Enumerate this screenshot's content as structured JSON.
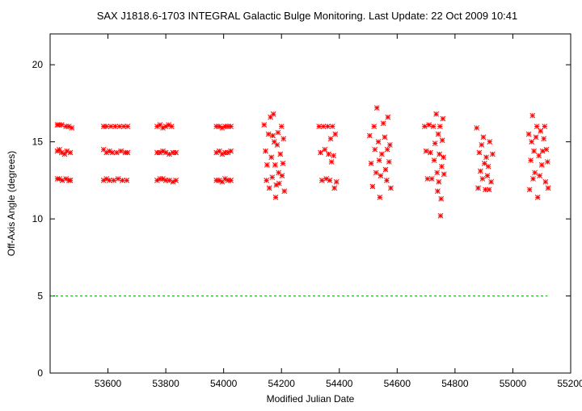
{
  "colors": {
    "points": "#ff0000",
    "reference_line": "#00c000",
    "axes": "#000000",
    "background": "#ffffff"
  },
  "chart_data": {
    "type": "scatter",
    "title": "SAX J1818.6-1703   INTEGRAL Galactic Bulge Monitoring.  Last Update: 22 Oct 2009 10:41",
    "xlabel": "Modified Julian Date",
    "ylabel": "Off-Axis Angle (degrees)",
    "xlim": [
      53400,
      55200
    ],
    "ylim": [
      0,
      22
    ],
    "x_ticks": [
      "53600",
      "53800",
      "54000",
      "54200",
      "54400",
      "54600",
      "54800",
      "55000",
      "55200"
    ],
    "y_ticks": [
      "0",
      "5",
      "10",
      "15",
      "20"
    ],
    "grid": false,
    "marker": "asterisk",
    "reference_line": {
      "y": 5,
      "style": "dashed"
    },
    "series": [
      {
        "points": [
          [
            53425,
            16.1
          ],
          [
            53430,
            16.1
          ],
          [
            53440,
            16.1
          ],
          [
            53455,
            16.0
          ],
          [
            53465,
            16.0
          ],
          [
            53475,
            15.9
          ],
          [
            53425,
            14.4
          ],
          [
            53432,
            14.5
          ],
          [
            53440,
            14.3
          ],
          [
            53450,
            14.2
          ],
          [
            53458,
            14.4
          ],
          [
            53470,
            14.3
          ],
          [
            53425,
            12.6
          ],
          [
            53432,
            12.6
          ],
          [
            53442,
            12.5
          ],
          [
            53455,
            12.6
          ],
          [
            53465,
            12.5
          ],
          [
            53470,
            12.5
          ],
          [
            53585,
            16.0
          ],
          [
            53595,
            16.0
          ],
          [
            53610,
            16.0
          ],
          [
            53625,
            16.0
          ],
          [
            53640,
            16.0
          ],
          [
            53655,
            16.0
          ],
          [
            53668,
            16.0
          ],
          [
            53585,
            14.5
          ],
          [
            53595,
            14.3
          ],
          [
            53605,
            14.4
          ],
          [
            53615,
            14.3
          ],
          [
            53630,
            14.3
          ],
          [
            53645,
            14.4
          ],
          [
            53660,
            14.3
          ],
          [
            53668,
            14.3
          ],
          [
            53585,
            12.5
          ],
          [
            53595,
            12.6
          ],
          [
            53605,
            12.5
          ],
          [
            53620,
            12.5
          ],
          [
            53635,
            12.6
          ],
          [
            53650,
            12.5
          ],
          [
            53665,
            12.5
          ],
          [
            53770,
            16.0
          ],
          [
            53780,
            16.1
          ],
          [
            53790,
            15.9
          ],
          [
            53800,
            16.0
          ],
          [
            53810,
            16.1
          ],
          [
            53820,
            16.0
          ],
          [
            53770,
            14.3
          ],
          [
            53780,
            14.3
          ],
          [
            53790,
            14.4
          ],
          [
            53800,
            14.3
          ],
          [
            53812,
            14.2
          ],
          [
            53825,
            14.3
          ],
          [
            53835,
            14.3
          ],
          [
            53770,
            12.5
          ],
          [
            53780,
            12.6
          ],
          [
            53790,
            12.6
          ],
          [
            53800,
            12.5
          ],
          [
            53812,
            12.5
          ],
          [
            53825,
            12.4
          ],
          [
            53835,
            12.5
          ],
          [
            53975,
            16.0
          ],
          [
            53985,
            16.0
          ],
          [
            53995,
            15.9
          ],
          [
            54005,
            16.0
          ],
          [
            54015,
            16.0
          ],
          [
            54025,
            16.0
          ],
          [
            53975,
            14.3
          ],
          [
            53985,
            14.4
          ],
          [
            53995,
            14.2
          ],
          [
            54005,
            14.3
          ],
          [
            54015,
            14.3
          ],
          [
            54025,
            14.4
          ],
          [
            53975,
            12.5
          ],
          [
            53985,
            12.5
          ],
          [
            53995,
            12.4
          ],
          [
            54005,
            12.6
          ],
          [
            54015,
            12.5
          ],
          [
            54025,
            12.5
          ],
          [
            54140,
            16.1
          ],
          [
            54145,
            14.4
          ],
          [
            54150,
            13.5
          ],
          [
            54148,
            12.5
          ],
          [
            54155,
            15.5
          ],
          [
            54158,
            12.0
          ],
          [
            54162,
            16.6
          ],
          [
            54165,
            14.0
          ],
          [
            54168,
            12.7
          ],
          [
            54170,
            15.4
          ],
          [
            54172,
            16.8
          ],
          [
            54175,
            15.0
          ],
          [
            54178,
            13.5
          ],
          [
            54180,
            11.4
          ],
          [
            54182,
            12.2
          ],
          [
            54185,
            14.8
          ],
          [
            54188,
            15.6
          ],
          [
            54190,
            13.0
          ],
          [
            54192,
            12.3
          ],
          [
            54196,
            14.2
          ],
          [
            54200,
            16.0
          ],
          [
            54202,
            12.8
          ],
          [
            54205,
            13.6
          ],
          [
            54207,
            15.2
          ],
          [
            54210,
            11.8
          ],
          [
            54330,
            16.0
          ],
          [
            54335,
            14.3
          ],
          [
            54340,
            12.5
          ],
          [
            54345,
            16.0
          ],
          [
            54350,
            14.5
          ],
          [
            54355,
            12.6
          ],
          [
            54360,
            16.0
          ],
          [
            54363,
            14.2
          ],
          [
            54367,
            12.5
          ],
          [
            54370,
            15.2
          ],
          [
            54373,
            13.7
          ],
          [
            54376,
            16.0
          ],
          [
            54380,
            14.1
          ],
          [
            54383,
            12.0
          ],
          [
            54386,
            15.5
          ],
          [
            54390,
            12.4
          ],
          [
            54505,
            15.4
          ],
          [
            54510,
            13.6
          ],
          [
            54515,
            12.1
          ],
          [
            54520,
            16.0
          ],
          [
            54523,
            14.5
          ],
          [
            54527,
            13.0
          ],
          [
            54530,
            17.2
          ],
          [
            54535,
            15.0
          ],
          [
            54538,
            13.8
          ],
          [
            54540,
            11.4
          ],
          [
            54543,
            12.8
          ],
          [
            54547,
            14.2
          ],
          [
            54552,
            16.2
          ],
          [
            54557,
            15.3
          ],
          [
            54560,
            13.2
          ],
          [
            54564,
            12.5
          ],
          [
            54566,
            14.5
          ],
          [
            54568,
            16.6
          ],
          [
            54572,
            13.7
          ],
          [
            54575,
            14.8
          ],
          [
            54578,
            12.0
          ],
          [
            54695,
            16.0
          ],
          [
            54700,
            14.4
          ],
          [
            54705,
            12.6
          ],
          [
            54710,
            16.1
          ],
          [
            54715,
            14.3
          ],
          [
            54720,
            12.6
          ],
          [
            54725,
            16.0
          ],
          [
            54728,
            13.8
          ],
          [
            54731,
            14.9
          ],
          [
            54735,
            16.8
          ],
          [
            54738,
            13.0
          ],
          [
            54740,
            11.8
          ],
          [
            54742,
            15.5
          ],
          [
            54744,
            12.4
          ],
          [
            54746,
            14.2
          ],
          [
            54748,
            16.0
          ],
          [
            54750,
            10.2
          ],
          [
            54752,
            11.3
          ],
          [
            54754,
            13.4
          ],
          [
            54756,
            15.1
          ],
          [
            54758,
            16.5
          ],
          [
            54760,
            14.0
          ],
          [
            54762,
            12.9
          ],
          [
            54875,
            15.9
          ],
          [
            54880,
            12.0
          ],
          [
            54884,
            14.3
          ],
          [
            54888,
            13.1
          ],
          [
            54892,
            14.8
          ],
          [
            54895,
            12.6
          ],
          [
            54898,
            15.3
          ],
          [
            54902,
            13.6
          ],
          [
            54905,
            11.9
          ],
          [
            54908,
            14.0
          ],
          [
            54912,
            12.8
          ],
          [
            54915,
            13.4
          ],
          [
            54918,
            11.9
          ],
          [
            54920,
            15.0
          ],
          [
            54925,
            12.4
          ],
          [
            54930,
            14.2
          ],
          [
            55055,
            15.5
          ],
          [
            55058,
            11.9
          ],
          [
            55062,
            13.8
          ],
          [
            55065,
            15.0
          ],
          [
            55068,
            16.7
          ],
          [
            55070,
            12.6
          ],
          [
            55073,
            14.4
          ],
          [
            55076,
            13.0
          ],
          [
            55080,
            15.3
          ],
          [
            55083,
            16.0
          ],
          [
            55086,
            11.4
          ],
          [
            55090,
            14.1
          ],
          [
            55093,
            12.8
          ],
          [
            55096,
            15.7
          ],
          [
            55100,
            13.5
          ],
          [
            55103,
            14.4
          ],
          [
            55107,
            15.2
          ],
          [
            55110,
            16.0
          ],
          [
            55113,
            12.4
          ],
          [
            55116,
            14.5
          ],
          [
            55120,
            13.7
          ],
          [
            55122,
            12.0
          ]
        ]
      }
    ]
  }
}
